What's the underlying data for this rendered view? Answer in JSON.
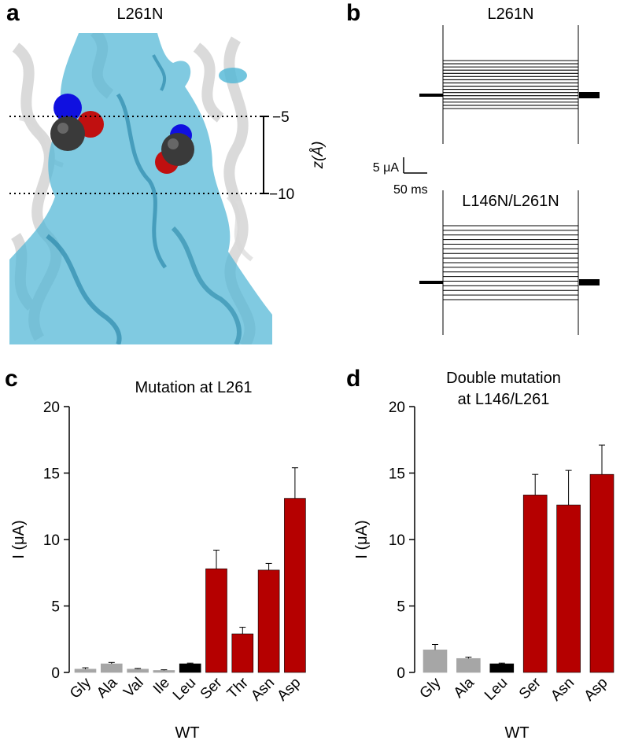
{
  "panels": {
    "a": {
      "letter": "a",
      "title": "L261N",
      "z_ticks": [
        "−5",
        "−10"
      ],
      "z_label": "z(Å)"
    },
    "b": {
      "letter": "b",
      "top_title": "L261N",
      "bottom_title": "L146N/L261N",
      "scale_current": "5 μA",
      "scale_time": "50 ms"
    }
  },
  "colors": {
    "grey_bar": "#a6a6a6",
    "wt_bar": "#000000",
    "mutant_bar": "#b50000",
    "water": "#4fb6d6",
    "water_dark": "#1f7fa3",
    "helix": "#c9c9c9",
    "atom_c": "#3a3a3a",
    "atom_n": "#1010e0",
    "atom_o": "#c01010"
  },
  "chart_data": [
    {
      "panel": "c",
      "letter": "c",
      "type": "bar",
      "title": "Mutation at L261",
      "ylabel": "I (μA)",
      "xlabel": "WT",
      "ylim": [
        0,
        20
      ],
      "yticks": [
        "0",
        "5",
        "10",
        "15",
        "20"
      ],
      "categories": [
        "Gly",
        "Ala",
        "Val",
        "Ile",
        "Leu",
        "Ser",
        "Thr",
        "Asn",
        "Asp"
      ],
      "values": [
        0.25,
        0.65,
        0.25,
        0.15,
        0.65,
        7.8,
        2.9,
        7.7,
        13.1
      ],
      "errors": [
        0.1,
        0.1,
        0.05,
        0.05,
        0.05,
        1.4,
        0.5,
        0.5,
        2.3
      ],
      "bar_colors": [
        "grey",
        "grey",
        "grey",
        "grey",
        "wt",
        "mutant",
        "mutant",
        "mutant",
        "mutant"
      ],
      "wt_category": "Leu"
    },
    {
      "panel": "d",
      "letter": "d",
      "type": "bar",
      "title_lines": [
        "Double mutation",
        "at L146/L261"
      ],
      "ylabel": "I (μA)",
      "xlabel": "WT",
      "ylim": [
        0,
        20
      ],
      "yticks": [
        "0",
        "5",
        "10",
        "15",
        "20"
      ],
      "categories": [
        "Gly",
        "Ala",
        "Leu",
        "Ser",
        "Asn",
        "Asp"
      ],
      "values": [
        1.7,
        1.05,
        0.65,
        13.35,
        12.6,
        14.9
      ],
      "errors": [
        0.4,
        0.1,
        0.05,
        1.55,
        2.6,
        2.2
      ],
      "bar_colors": [
        "grey",
        "grey",
        "wt",
        "mutant",
        "mutant",
        "mutant"
      ],
      "wt_category": "Leu"
    }
  ]
}
